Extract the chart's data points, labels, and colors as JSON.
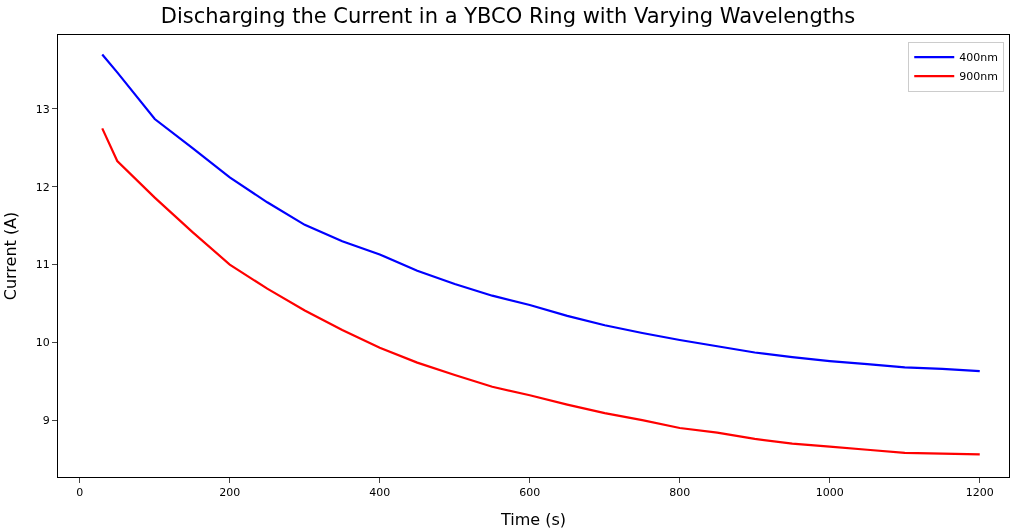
{
  "chart_data": {
    "type": "line",
    "title": "Discharging the Current in a YBCO Ring with Varying Wavelengths",
    "xlabel": "Time (s)",
    "ylabel": "Current (A)",
    "x": [
      30,
      50,
      100,
      150,
      200,
      250,
      300,
      350,
      400,
      450,
      500,
      550,
      600,
      650,
      700,
      750,
      800,
      850,
      900,
      950,
      1000,
      1050,
      1100,
      1150,
      1200
    ],
    "series": [
      {
        "name": "400nm",
        "color": "#0000ff",
        "values": [
          13.7,
          13.47,
          12.87,
          12.5,
          12.12,
          11.8,
          11.51,
          11.3,
          11.13,
          10.92,
          10.75,
          10.6,
          10.48,
          10.34,
          10.22,
          10.12,
          10.03,
          9.95,
          9.87,
          9.81,
          9.76,
          9.72,
          9.68,
          9.66,
          9.63
        ]
      },
      {
        "name": "900nm",
        "color": "#ff0000",
        "values": [
          12.75,
          12.33,
          11.86,
          11.42,
          11.0,
          10.69,
          10.41,
          10.16,
          9.93,
          9.74,
          9.58,
          9.43,
          9.32,
          9.2,
          9.09,
          9.0,
          8.9,
          8.84,
          8.76,
          8.7,
          8.66,
          8.62,
          8.58,
          8.57,
          8.56
        ]
      }
    ],
    "xlim": [
      -29,
      1239
    ],
    "ylim": [
      8.27,
      13.95
    ],
    "xticks": [
      0,
      200,
      400,
      600,
      800,
      1000,
      1200
    ],
    "yticks": [
      9,
      10,
      11,
      12,
      13
    ],
    "legend": "top right",
    "marker": "none",
    "line_style": "solid"
  }
}
